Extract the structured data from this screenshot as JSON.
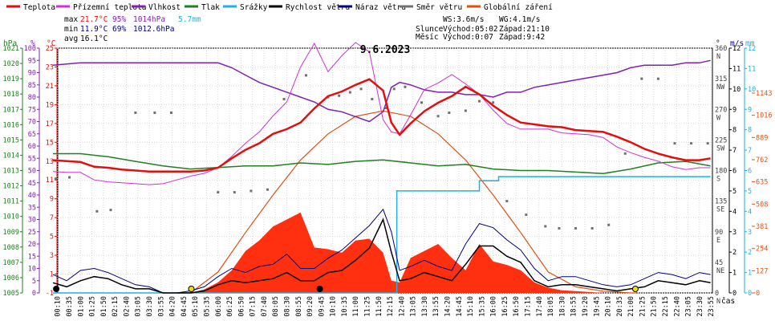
{
  "chart_data": {
    "type": "line",
    "title": "9.6.2023",
    "x_unit_label": "čas",
    "legend": [
      {
        "name": "Teplota",
        "color": "#e01010"
      },
      {
        "name": "Přízemní teplota",
        "color": "#d030d0"
      },
      {
        "name": "Vlhkost",
        "color": "#8020b0"
      },
      {
        "name": "Tlak",
        "color": "#208020"
      },
      {
        "name": "Srážky",
        "color": "#20b0e0"
      },
      {
        "name": "Rychlost větru",
        "color": "#000000"
      },
      {
        "name": "Náraz větru",
        "color": "#000080"
      },
      {
        "name": "Směr větru",
        "color": "#707070"
      },
      {
        "name": "Globální záření",
        "color": "#e05010"
      }
    ],
    "stats": {
      "max_label": "max",
      "max_temp": "21.7°C",
      "max_hum": "95%",
      "max_press": "1014hPa",
      "rain": "5.7mm",
      "min_label": "min",
      "min_temp": "11.9°C",
      "min_hum": "69%",
      "min_press": "1012.6hPa",
      "avg_label": "avg",
      "avg_temp": "16.1°C"
    },
    "info": {
      "ws": "WS:3.6m/s",
      "wg": "WG:4.1m/s",
      "sun_label": "Slunce",
      "sunrise": "Východ:05:02",
      "sunset": "Západ:21:10",
      "moon_label": "Měsíc",
      "moonrise": "Východ:0:07",
      "moonset": "Západ:9:42"
    },
    "x_ticks": [
      "00:10",
      "00:35",
      "01:00",
      "01:25",
      "01:50",
      "02:15",
      "02:40",
      "03:05",
      "03:30",
      "03:55",
      "04:20",
      "04:45",
      "05:10",
      "05:35",
      "06:00",
      "06:25",
      "06:50",
      "07:15",
      "07:40",
      "08:05",
      "08:30",
      "08:55",
      "09:20",
      "09:45",
      "10:10",
      "10:35",
      "11:00",
      "11:25",
      "11:50",
      "12:15",
      "12:40",
      "13:05",
      "13:30",
      "13:55",
      "14:20",
      "14:45",
      "15:10",
      "15:35",
      "16:00",
      "16:25",
      "16:50",
      "17:15",
      "17:40",
      "18:05",
      "18:30",
      "18:55",
      "19:20",
      "19:45",
      "20:10",
      "20:35",
      "21:00",
      "21:25",
      "21:50",
      "22:15",
      "22:40",
      "23:05",
      "23:30",
      "23:55"
    ],
    "axes": {
      "pressure": {
        "unit": "hPa",
        "min": 1005,
        "max": 1021,
        "ticks": [
          "1005",
          "1006",
          "1007",
          "1008",
          "1009",
          "1010",
          "1011",
          "1012",
          "1013",
          "1014",
          "1015",
          "1016",
          "1017",
          "1018",
          "1019",
          "1020",
          "1021"
        ]
      },
      "humidity": {
        "unit": "%",
        "min": 0,
        "max": 100,
        "ticks": [
          "0",
          "5",
          "10",
          "15",
          "20",
          "25",
          "30",
          "35",
          "40",
          "45",
          "50",
          "55",
          "60",
          "65",
          "70",
          "75",
          "80",
          "85",
          "90",
          "95",
          "100"
        ]
      },
      "temperature": {
        "unit": "°C",
        "min": -1,
        "max": 25,
        "ticks": [
          "-1",
          "1",
          "3",
          "5",
          "7",
          "9",
          "11",
          "13",
          "15",
          "17",
          "19",
          "21",
          "23",
          "25"
        ]
      },
      "direction": {
        "unit": "°",
        "min": 0,
        "max": 360,
        "ticks": [
          "0",
          "45",
          "90",
          "135",
          "180",
          "225",
          "270",
          "315",
          "360"
        ],
        "labels": [
          "N",
          "NE",
          "E",
          "SE",
          "S",
          "SW",
          "W",
          "NW",
          "N"
        ]
      },
      "wind": {
        "unit": "m/s",
        "min": 0,
        "max": 12,
        "ticks": [
          "0",
          "1",
          "2",
          "3",
          "4",
          "5",
          "6",
          "7",
          "8",
          "9",
          "10",
          "11",
          "12"
        ]
      },
      "rain": {
        "unit": "mm",
        "min": 0,
        "max": 12,
        "ticks": [
          "0",
          "1",
          "2",
          "3",
          "4",
          "5",
          "6",
          "7",
          "8",
          "9",
          "10",
          "11",
          "12"
        ]
      },
      "radiation": {
        "unit": "W/m²",
        "min": 0,
        "max": 1400,
        "ticks": [
          "0",
          "127",
          "254",
          "381",
          "508",
          "635",
          "762",
          "889",
          "1016",
          "1143"
        ]
      }
    },
    "series": {
      "temperature": {
        "name": "Teplota",
        "x_hours": [
          0,
          0.5,
          1,
          1.5,
          2,
          2.5,
          3,
          3.5,
          4,
          4.5,
          5,
          5.5,
          6,
          6.5,
          7,
          7.5,
          8,
          8.5,
          9,
          9.5,
          10,
          10.5,
          11,
          11.5,
          12,
          12.3,
          12.6,
          13,
          13.5,
          14,
          14.5,
          15,
          15.5,
          16,
          16.5,
          17,
          17.5,
          18,
          18.5,
          19,
          19.5,
          20,
          20.5,
          21,
          21.5,
          22,
          22.5,
          23,
          23.5,
          23.9
        ],
        "values": [
          13.1,
          13.0,
          12.9,
          12.4,
          12.3,
          12.1,
          12.0,
          11.9,
          11.9,
          11.9,
          11.9,
          12.0,
          12.3,
          13.3,
          14.2,
          14.9,
          15.9,
          16.4,
          17.1,
          18.6,
          19.9,
          20.4,
          21.1,
          21.7,
          20.5,
          17.1,
          15.8,
          17.0,
          18.3,
          19.2,
          19.9,
          20.9,
          20.1,
          18.9,
          17.9,
          17.1,
          16.9,
          16.7,
          16.6,
          16.3,
          16.2,
          16.1,
          15.6,
          15.0,
          14.3,
          13.8,
          13.4,
          13.1,
          13.1,
          13.3
        ]
      },
      "ground_temp": {
        "name": "Přízemní teplota",
        "x_hours": [
          0,
          0.5,
          1,
          1.5,
          2,
          2.5,
          3,
          3.5,
          4,
          4.5,
          5,
          5.5,
          6,
          6.5,
          7,
          7.5,
          8,
          8.5,
          9,
          9.5,
          10,
          10.5,
          11,
          11.5,
          12,
          12.3,
          12.6,
          13,
          13.5,
          14,
          14.5,
          15,
          15.5,
          16,
          16.5,
          17,
          17.5,
          18,
          18.5,
          19,
          19.5,
          20,
          20.5,
          21,
          21.5,
          22,
          22.5,
          23,
          23.5,
          23.9
        ],
        "values": [
          11.9,
          11.8,
          11.8,
          11.0,
          10.8,
          10.7,
          10.6,
          10.5,
          10.6,
          11.0,
          11.4,
          11.7,
          12.3,
          13.5,
          14.9,
          16.1,
          17.8,
          19.3,
          23.0,
          25.5,
          22.5,
          24.2,
          25.6,
          24.6,
          17.4,
          16.1,
          15.9,
          17.9,
          20.6,
          21.3,
          22.2,
          21.2,
          20.1,
          18.4,
          17.0,
          16.4,
          16.4,
          16.4,
          16.0,
          15.9,
          15.8,
          15.5,
          14.5,
          13.9,
          13.4,
          13.0,
          12.4,
          12.1,
          12.3,
          12.3
        ]
      },
      "humidity": {
        "name": "Vlhkost",
        "x_hours": [
          0,
          1,
          2,
          3,
          4,
          5,
          6,
          6.5,
          7,
          7.5,
          8,
          8.5,
          9,
          9.5,
          10,
          10.5,
          11,
          11.5,
          12,
          12.3,
          12.6,
          13,
          13.5,
          14,
          14.5,
          15,
          15.5,
          16,
          16.5,
          17,
          17.5,
          18,
          18.5,
          19,
          19.5,
          20,
          20.5,
          21,
          21.5,
          22,
          22.5,
          23,
          23.5,
          23.9
        ],
        "values": [
          93,
          94,
          94,
          94,
          94,
          94,
          94,
          92,
          89,
          86,
          84,
          82,
          80,
          78,
          75,
          74,
          72,
          70,
          74,
          84,
          86,
          85,
          83,
          82,
          82,
          81,
          81,
          80,
          82,
          82,
          84,
          85,
          86,
          87,
          88,
          89,
          90,
          92,
          93,
          93,
          93,
          94,
          94,
          95
        ]
      },
      "pressure": {
        "name": "Tlak",
        "x_hours": [
          0,
          1,
          2,
          3,
          4,
          5,
          6,
          7,
          8,
          9,
          10,
          11,
          12,
          13,
          14,
          15,
          16,
          17,
          18,
          19,
          20,
          21,
          22,
          23,
          23.9
        ],
        "values": [
          1014.1,
          1014.1,
          1013.9,
          1013.6,
          1013.3,
          1013.1,
          1013.2,
          1013.3,
          1013.3,
          1013.5,
          1013.4,
          1013.6,
          1013.7,
          1013.5,
          1013.3,
          1013.4,
          1013.1,
          1013.0,
          1013.0,
          1012.9,
          1012.8,
          1013.1,
          1013.5,
          1013.6,
          1013.3
        ]
      },
      "rain": {
        "name": "Srážky",
        "x_hours": [
          0,
          12.5,
          12.5,
          15.5,
          15.5,
          16.2,
          16.2,
          23.9
        ],
        "values": [
          0,
          0,
          5.0,
          5.0,
          5.5,
          5.5,
          5.7,
          5.7
        ]
      },
      "wind_speed": {
        "name": "Rychlost větru",
        "x_hours": [
          0,
          0.5,
          1,
          1.5,
          2,
          2.5,
          3,
          3.5,
          4,
          4.5,
          5,
          5.5,
          6,
          6.5,
          7,
          7.5,
          8,
          8.5,
          9,
          9.5,
          10,
          10.5,
          11,
          11.5,
          12,
          12.3,
          12.6,
          13,
          13.5,
          14,
          14.5,
          15,
          15.5,
          16,
          16.5,
          17,
          17.5,
          18,
          18.5,
          19,
          19.5,
          20,
          20.5,
          21,
          21.5,
          22,
          22.5,
          23,
          23.5,
          23.9
        ],
        "values": [
          0.5,
          0.3,
          0.6,
          0.8,
          0.7,
          0.4,
          0.2,
          0.2,
          0,
          0,
          0,
          0.1,
          0.4,
          0.6,
          0.5,
          0.6,
          0.7,
          1.0,
          0.6,
          0.6,
          1.0,
          1.1,
          1.6,
          2.2,
          3.6,
          2.0,
          0.6,
          0.7,
          1.0,
          0.8,
          0.6,
          1.4,
          2.3,
          2.3,
          1.8,
          1.5,
          0.6,
          0.3,
          0.4,
          0.4,
          0.3,
          0.2,
          0.1,
          0.2,
          0.3,
          0.6,
          0.5,
          0.4,
          0.6,
          0.5
        ]
      },
      "wind_gust": {
        "name": "Náraz větru",
        "x_hours": [
          0,
          0.5,
          1,
          1.5,
          2,
          2.5,
          3,
          3.5,
          4,
          4.5,
          5,
          5.5,
          6,
          6.5,
          7,
          7.5,
          8,
          8.5,
          9,
          9.5,
          10,
          10.5,
          11,
          11.5,
          12,
          12.3,
          12.6,
          13,
          13.5,
          14,
          14.5,
          15,
          15.5,
          16,
          16.5,
          17,
          17.5,
          18,
          18.5,
          19,
          19.5,
          20,
          20.5,
          21,
          21.5,
          22,
          22.5,
          23,
          23.5,
          23.9
        ],
        "values": [
          0.9,
          0.6,
          1.1,
          1.2,
          1.0,
          0.7,
          0.4,
          0.3,
          0,
          0,
          0.1,
          0.3,
          0.8,
          1.2,
          1.0,
          1.3,
          1.4,
          1.9,
          1.2,
          1.2,
          1.7,
          2.1,
          2.7,
          3.3,
          4.1,
          3.0,
          1.1,
          1.3,
          1.6,
          1.3,
          1.1,
          2.4,
          3.4,
          3.2,
          2.6,
          2.1,
          1.2,
          0.6,
          0.8,
          0.8,
          0.6,
          0.4,
          0.3,
          0.4,
          0.7,
          1.0,
          0.9,
          0.7,
          1.0,
          0.9
        ]
      },
      "wind_dir": {
        "name": "Směr větru",
        "x_hours": [
          0.1,
          0.6,
          1.6,
          2.1,
          3.0,
          3.7,
          4.3,
          6.0,
          6.6,
          7.2,
          7.8,
          8.4,
          9.2,
          10.0,
          10.4,
          10.8,
          11.2,
          11.6,
          12.1,
          12.4,
          12.8,
          13.4,
          14.0,
          14.4,
          15.0,
          15.5,
          16.0,
          16.5,
          17.2,
          17.9,
          18.4,
          19.0,
          19.6,
          20.2,
          20.8,
          21.4,
          22.0,
          22.6,
          23.2,
          23.8
        ],
        "values": [
          168,
          170,
          120,
          122,
          265,
          265,
          265,
          148,
          148,
          150,
          152,
          285,
          320,
          288,
          290,
          295,
          300,
          285,
          272,
          300,
          303,
          280,
          260,
          265,
          268,
          282,
          280,
          135,
          115,
          98,
          95,
          95,
          95,
          100,
          205,
          315,
          315,
          220,
          220,
          220
        ]
      },
      "radiation": {
        "name": "Globální záření",
        "x_hours": [
          5.0,
          6,
          7,
          8,
          9,
          10,
          11,
          12,
          13,
          14,
          15,
          16,
          17,
          18,
          19,
          20,
          21,
          21.2
        ],
        "values": [
          0,
          120,
          345,
          560,
          760,
          910,
          1010,
          1041,
          1010,
          910,
          760,
          560,
          345,
          120,
          35,
          10,
          0,
          0
        ]
      },
      "radiation_measured": {
        "name": "Globální záření",
        "x_hours": [
          5.0,
          5.5,
          6.0,
          6.5,
          7.0,
          7.5,
          8.0,
          8.5,
          9.0,
          9.5,
          10.0,
          10.5,
          11.0,
          11.5,
          12.0,
          12.3,
          12.6,
          13.0,
          13.5,
          14.0,
          14.5,
          15.0,
          15.5,
          16.0,
          16.5,
          17.0,
          17.5,
          18.0,
          18.5,
          19.0,
          19.5,
          20.0,
          21.0
        ],
        "values": [
          0,
          20,
          60,
          130,
          240,
          300,
          380,
          420,
          460,
          260,
          250,
          230,
          300,
          310,
          230,
          70,
          60,
          200,
          240,
          280,
          200,
          130,
          280,
          180,
          160,
          130,
          60,
          30,
          15,
          10,
          5,
          0,
          0
        ]
      }
    },
    "markers": [
      {
        "label": "moonrise",
        "x_hours": 0.12,
        "color": "#000000"
      },
      {
        "label": "sunrise",
        "x_hours": 5.03,
        "color": "#f0e000"
      },
      {
        "label": "moonset",
        "x_hours": 9.7,
        "color": "#000000"
      },
      {
        "label": "sunset",
        "x_hours": 21.17,
        "color": "#f0e000"
      }
    ]
  }
}
